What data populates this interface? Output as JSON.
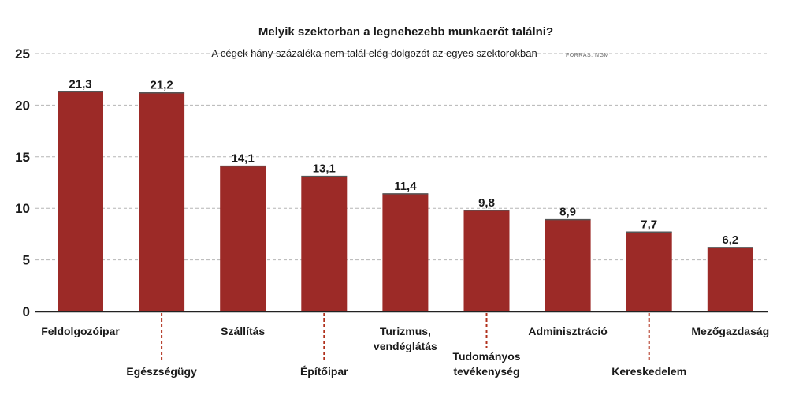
{
  "chart_data": {
    "type": "bar",
    "title": "Melyik szektorban a legnehezebb munkaerőt találni?",
    "subtitle": "A cégek hány százaléka nem talál elég dolgozót az egyes szektorokban",
    "source": "FORRÁS: NGM",
    "categories": [
      [
        "Feldolgozóipar"
      ],
      [
        "Egészségügy"
      ],
      [
        "Szállítás"
      ],
      [
        "Építőipar"
      ],
      [
        "Turizmus,",
        "vendéglátás"
      ],
      [
        "Tudományos",
        "tevékenység"
      ],
      [
        "Adminisztráció"
      ],
      [
        "Kereskedelem"
      ],
      [
        "Mezőgazdaság"
      ]
    ],
    "values": [
      21.3,
      21.2,
      14.1,
      13.1,
      11.4,
      9.8,
      8.9,
      7.7,
      6.2
    ],
    "value_labels": [
      "21,3",
      "21,2",
      "14,1",
      "13,1",
      "11,4",
      "9,8",
      "8,9",
      "7,7",
      "6,2"
    ],
    "yticks": [
      0,
      5,
      10,
      15,
      20,
      25
    ],
    "ylim": [
      0,
      25
    ],
    "grid": true,
    "colors": {
      "bar": "#9c2a27",
      "grid": "#b5b5b5",
      "axis": "#222222",
      "leader": "#b0301c"
    }
  }
}
